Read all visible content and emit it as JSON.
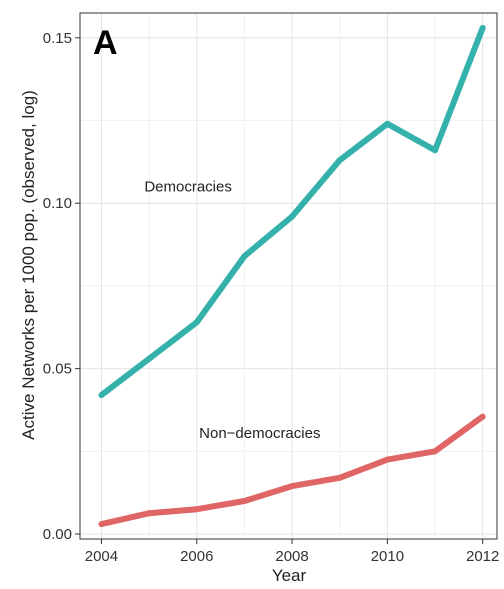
{
  "chart_data": {
    "type": "line",
    "panel_label": "A",
    "xlabel": "Year",
    "ylabel": "Active Networks per 1000 pop. (observed, log)",
    "xlim": [
      2003.55,
      2012.3
    ],
    "ylim": [
      -0.0015,
      0.1575
    ],
    "x_ticks": [
      2004,
      2006,
      2008,
      2010,
      2012
    ],
    "y_ticks": [
      0.0,
      0.05,
      0.1,
      0.15
    ],
    "y_tick_labels": [
      "0.00",
      "0.05",
      "0.10",
      "0.15"
    ],
    "grid": true,
    "x": [
      2004,
      2005,
      2006,
      2007,
      2008,
      2009,
      2010,
      2011,
      2012
    ],
    "series": [
      {
        "name": "Democracies",
        "color": "#35b1ab",
        "values": [
          0.042,
          0.053,
          0.064,
          0.084,
          0.096,
          0.113,
          0.124,
          0.116,
          0.153
        ]
      },
      {
        "name": "Non−democracies",
        "color": "#e06666",
        "values": [
          0.003,
          0.0063,
          0.0075,
          0.01,
          0.0145,
          0.017,
          0.0225,
          0.025,
          0.0355
        ]
      }
    ]
  }
}
